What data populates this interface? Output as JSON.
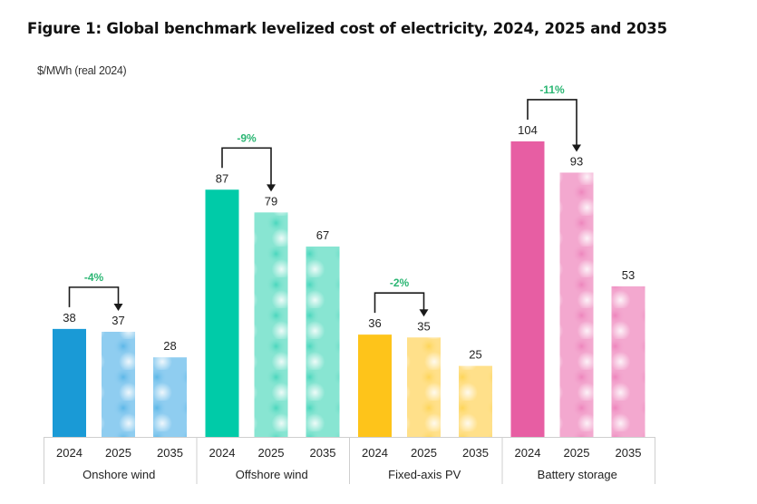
{
  "title": "Figure 1: Global benchmark levelized cost of electricity, 2024, 2025 and 2035",
  "unit_label": "$/MWh (real 2024)",
  "chart_data": {
    "type": "bar",
    "title": "Figure 1: Global benchmark levelized cost of electricity, 2024, 2025 and 2035",
    "xlabel": "",
    "ylabel": "$/MWh (real 2024)",
    "ylim": [
      0,
      110
    ],
    "grid": false,
    "legend": "none",
    "years": [
      "2024",
      "2025",
      "2035"
    ],
    "groups": [
      {
        "name": "Onshore wind",
        "values": [
          38,
          37,
          28
        ],
        "change_label": "-4%",
        "colors": {
          "solid": "#1a9ad6",
          "light": "#8fcdf0",
          "light_spot": "#4fb1e5"
        }
      },
      {
        "name": "Offshore wind",
        "values": [
          87,
          79,
          67
        ],
        "change_label": "-9%",
        "colors": {
          "solid": "#00cba8",
          "light": "#88e5d2",
          "light_spot": "#3ad3b8"
        }
      },
      {
        "name": "Fixed-axis PV",
        "values": [
          36,
          35,
          25
        ],
        "change_label": "-2%",
        "colors": {
          "solid": "#fec41a",
          "light": "#ffe08a",
          "light_spot": "#fdd24a"
        }
      },
      {
        "name": "Battery storage",
        "values": [
          104,
          93,
          53
        ],
        "change_label": "-11%",
        "colors": {
          "solid": "#e75ea3",
          "light": "#f3a8cf",
          "light_spot": "#ec7db8"
        }
      }
    ],
    "annotation_color": "#2bb673",
    "axis_color": "#cfcfcf",
    "text_color": "#222222"
  }
}
